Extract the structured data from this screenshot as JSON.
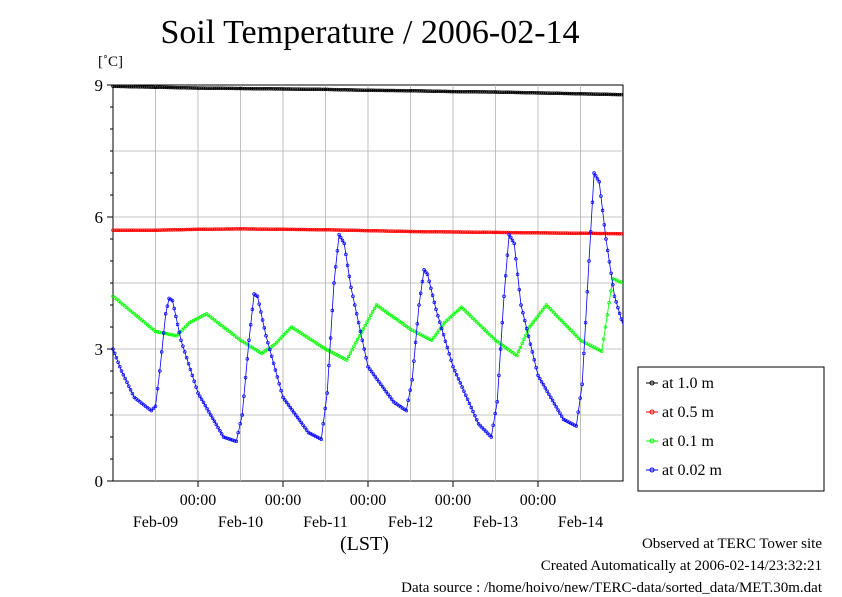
{
  "chart_data": {
    "type": "scatter",
    "title": "Soil Temperature / 2006-02-14",
    "ylabel": "[˚C]",
    "xlabel": "(LST)",
    "ylim": [
      0,
      9
    ],
    "yticks": [
      0,
      3,
      6,
      9
    ],
    "xlim": [
      0,
      6
    ],
    "xtick_positions": [
      1,
      2,
      3,
      4,
      5
    ],
    "xtick_time_labels": [
      "00:00",
      "00:00",
      "00:00",
      "00:00",
      "00:00"
    ],
    "xtick_date_labels": [
      "Feb-09",
      "Feb-10",
      "Feb-11",
      "Feb-12",
      "Feb-13",
      "Feb-14"
    ],
    "grid": true,
    "legend_position": "right",
    "series": [
      {
        "name": "at 1.0 m",
        "color": "#000000",
        "x": [
          0,
          0.5,
          1,
          1.5,
          2,
          2.5,
          3,
          3.5,
          4,
          4.5,
          5,
          5.5,
          6
        ],
        "y": [
          8.97,
          8.95,
          8.93,
          8.92,
          8.91,
          8.9,
          8.88,
          8.87,
          8.85,
          8.84,
          8.82,
          8.8,
          8.78
        ]
      },
      {
        "name": "at 0.5 m",
        "color": "#ff0000",
        "x": [
          0,
          0.5,
          1,
          1.5,
          2,
          2.5,
          3,
          3.5,
          4,
          4.5,
          5,
          5.5,
          6
        ],
        "y": [
          5.7,
          5.7,
          5.72,
          5.73,
          5.72,
          5.71,
          5.69,
          5.67,
          5.66,
          5.65,
          5.64,
          5.63,
          5.62
        ]
      },
      {
        "name": "at 0.1 m",
        "color": "#00ff00",
        "x": [
          0,
          0.25,
          0.5,
          0.75,
          0.9,
          1.1,
          1.5,
          1.75,
          1.9,
          2.1,
          2.5,
          2.75,
          2.9,
          3.1,
          3.5,
          3.75,
          3.9,
          4.1,
          4.5,
          4.75,
          4.9,
          5.1,
          5.5,
          5.75,
          5.88,
          6
        ],
        "y": [
          4.2,
          3.8,
          3.4,
          3.3,
          3.6,
          3.8,
          3.2,
          2.9,
          3.1,
          3.5,
          3.0,
          2.75,
          3.3,
          4.0,
          3.45,
          3.2,
          3.6,
          3.95,
          3.2,
          2.85,
          3.5,
          4.0,
          3.2,
          2.95,
          4.6,
          4.5
        ]
      },
      {
        "name": "at 0.02 m",
        "color": "#0000ff",
        "x": [
          0,
          0.1,
          0.25,
          0.45,
          0.5,
          0.55,
          0.62,
          0.66,
          0.7,
          0.8,
          1.0,
          1.3,
          1.45,
          1.52,
          1.6,
          1.66,
          1.7,
          1.8,
          2.0,
          2.3,
          2.45,
          2.52,
          2.6,
          2.66,
          2.72,
          2.8,
          3.0,
          3.3,
          3.45,
          3.52,
          3.6,
          3.66,
          3.7,
          3.8,
          4.0,
          4.3,
          4.45,
          4.52,
          4.6,
          4.66,
          4.72,
          4.8,
          5.0,
          5.3,
          5.45,
          5.52,
          5.6,
          5.66,
          5.72,
          5.8,
          5.9,
          6.0
        ],
        "y": [
          3.0,
          2.5,
          1.9,
          1.6,
          1.7,
          2.5,
          3.8,
          4.15,
          4.1,
          3.2,
          2.0,
          1.0,
          0.9,
          1.5,
          3.2,
          4.25,
          4.2,
          3.3,
          1.9,
          1.1,
          0.95,
          2.0,
          4.5,
          5.6,
          5.4,
          4.4,
          2.6,
          1.8,
          1.6,
          2.3,
          4.0,
          4.8,
          4.7,
          3.9,
          2.6,
          1.3,
          1.0,
          1.8,
          4.2,
          5.6,
          5.4,
          4.0,
          2.4,
          1.4,
          1.25,
          2.2,
          5.0,
          7.0,
          6.8,
          5.5,
          4.2,
          3.55
        ]
      }
    ]
  },
  "footer": {
    "line1": "Observed at TERC Tower site",
    "line2": "Created Automatically at 2006-02-14/23:32:21",
    "line3": "Data source : /home/hoivo/new/TERC-data/sorted_data/MET.30m.dat"
  }
}
